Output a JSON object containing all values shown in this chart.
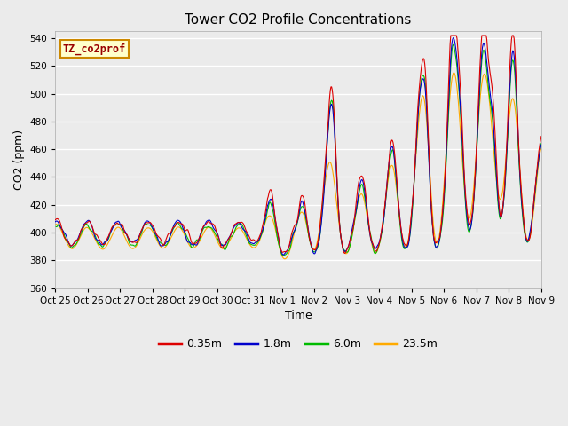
{
  "title": "Tower CO2 Profile Concentrations",
  "xlabel": "Time",
  "ylabel": "CO2 (ppm)",
  "ylim": [
    360,
    545
  ],
  "yticks": [
    360,
    380,
    400,
    420,
    440,
    460,
    480,
    500,
    520,
    540
  ],
  "xlabels": [
    "Oct 25",
    "Oct 26",
    "Oct 27",
    "Oct 28",
    "Oct 29",
    "Oct 30",
    "Oct 31",
    "Nov 1",
    "Nov 2",
    "Nov 3",
    "Nov 4",
    "Nov 5",
    "Nov 6",
    "Nov 7",
    "Nov 8",
    "Nov 9"
  ],
  "series_labels": [
    "0.35m",
    "1.8m",
    "6.0m",
    "23.5m"
  ],
  "series_colors": [
    "#dd0000",
    "#0000cc",
    "#00bb00",
    "#ffaa00"
  ],
  "legend_label": "TZ_co2prof",
  "bg_color": "#ebebeb",
  "line_width": 0.8
}
